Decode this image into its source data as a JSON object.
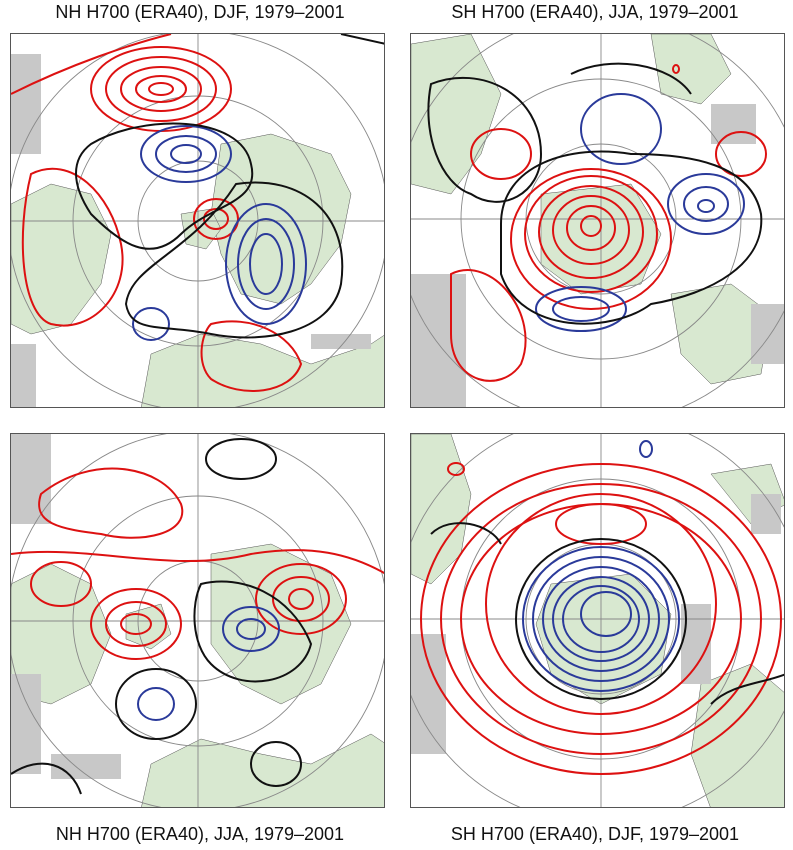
{
  "panels": [
    {
      "title": "NH H700 (ERA40), DJF, 1979–2001",
      "hemisphere": "NH",
      "season": "DJF"
    },
    {
      "title": "SH H700 (ERA40), JJA, 1979–2001",
      "hemisphere": "SH",
      "season": "JJA"
    },
    {
      "title": "NH H700 (ERA40), JJA, 1979–2001",
      "hemisphere": "NH",
      "season": "JJA"
    },
    {
      "title": "SH H700 (ERA40), DJF, 1979–2001",
      "hemisphere": "SH",
      "season": "DJF"
    }
  ],
  "colors": {
    "positive_contour": "#dd1111",
    "negative_contour": "#2a3a9a",
    "zero_contour": "#111111",
    "land": "#d8e8d0",
    "missing_data": "#c8c8c8",
    "grid": "#888888"
  }
}
